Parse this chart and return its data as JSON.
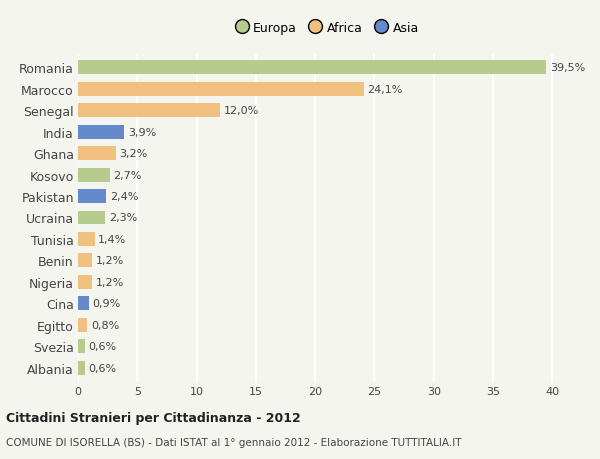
{
  "countries": [
    "Romania",
    "Marocco",
    "Senegal",
    "India",
    "Ghana",
    "Kosovo",
    "Pakistan",
    "Ucraina",
    "Tunisia",
    "Benin",
    "Nigeria",
    "Cina",
    "Egitto",
    "Svezia",
    "Albania"
  ],
  "values": [
    39.5,
    24.1,
    12.0,
    3.9,
    3.2,
    2.7,
    2.4,
    2.3,
    1.4,
    1.2,
    1.2,
    0.9,
    0.8,
    0.6,
    0.6
  ],
  "labels": [
    "39,5%",
    "24,1%",
    "12,0%",
    "3,9%",
    "3,2%",
    "2,7%",
    "2,4%",
    "2,3%",
    "1,4%",
    "1,2%",
    "1,2%",
    "0,9%",
    "0,8%",
    "0,6%",
    "0,6%"
  ],
  "colors": [
    "#b5cc8e",
    "#f0c080",
    "#f0c080",
    "#6688cc",
    "#f0c080",
    "#b5cc8e",
    "#6688cc",
    "#b5cc8e",
    "#f0c080",
    "#f0c080",
    "#f0c080",
    "#6688cc",
    "#f0c080",
    "#b5cc8e",
    "#b5cc8e"
  ],
  "legend_labels": [
    "Europa",
    "Africa",
    "Asia"
  ],
  "legend_colors": [
    "#b5cc8e",
    "#f0c080",
    "#6688cc"
  ],
  "xlim": [
    0,
    42
  ],
  "xticks": [
    0,
    5,
    10,
    15,
    20,
    25,
    30,
    35,
    40
  ],
  "title1": "Cittadini Stranieri per Cittadinanza - 2012",
  "title2": "COMUNE DI ISORELLA (BS) - Dati ISTAT al 1° gennaio 2012 - Elaborazione TUTTITALIA.IT",
  "bg_color": "#f5f5f0",
  "grid_color": "#ffffff"
}
